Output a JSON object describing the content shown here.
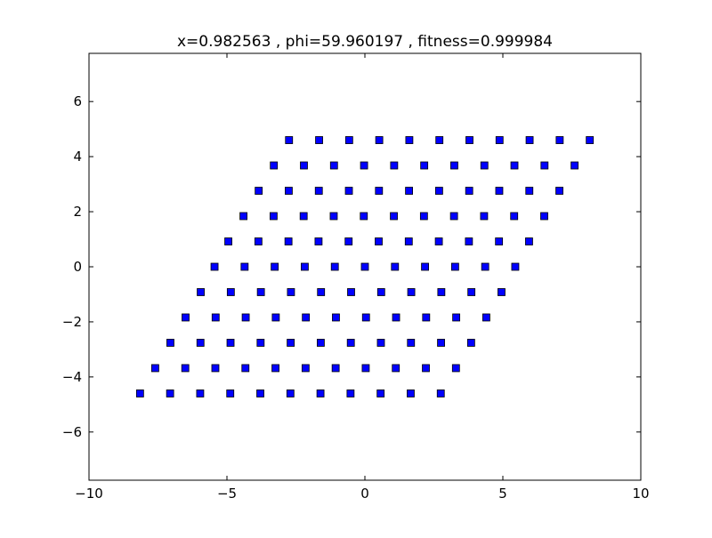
{
  "chart_data": {
    "type": "scatter",
    "title": "x=0.982563 , phi=59.960197 , fitness=0.999984",
    "xlabel": "",
    "ylabel": "",
    "xlim": [
      -10,
      10
    ],
    "ylim": [
      -7.75,
      7.75
    ],
    "xticks": [
      -10,
      -5,
      0,
      5,
      10
    ],
    "xtick_labels": [
      "−10",
      "−5",
      "0",
      "5",
      "10"
    ],
    "yticks": [
      -6,
      -4,
      -2,
      0,
      2,
      4,
      6
    ],
    "ytick_labels": [
      "−6",
      "−4",
      "−2",
      "0",
      "2",
      "4",
      "6"
    ],
    "grid": false,
    "marker": "square",
    "marker_color": "#0000ff",
    "marker_edge_color": "#000000",
    "rows": [
      {
        "y": 4.6,
        "x": [
          -2.75,
          -1.66,
          -0.57,
          0.52,
          1.61,
          2.7,
          3.79,
          4.88,
          5.97,
          7.06,
          8.15
        ]
      },
      {
        "y": 3.68,
        "x": [
          -3.3,
          -2.21,
          -1.12,
          -0.03,
          1.06,
          2.15,
          3.24,
          4.33,
          5.42,
          6.51,
          7.6
        ]
      },
      {
        "y": 2.76,
        "x": [
          -3.85,
          -2.76,
          -1.67,
          -0.58,
          0.51,
          1.6,
          2.69,
          3.78,
          4.87,
          5.96,
          7.05
        ]
      },
      {
        "y": 1.84,
        "x": [
          -4.4,
          -3.31,
          -2.22,
          -1.13,
          -0.04,
          1.05,
          2.14,
          3.23,
          4.32,
          5.41,
          6.5
        ]
      },
      {
        "y": 0.92,
        "x": [
          -4.95,
          -3.86,
          -2.77,
          -1.68,
          -0.59,
          0.5,
          1.59,
          2.68,
          3.77,
          4.86,
          5.95
        ]
      },
      {
        "y": 0,
        "x": [
          -5.45,
          -4.36,
          -3.27,
          -2.18,
          -1.09,
          0.0,
          1.09,
          2.18,
          3.27,
          4.36,
          5.45
        ]
      },
      {
        "y": -0.92,
        "x": [
          -5.95,
          -4.86,
          -3.77,
          -2.68,
          -1.59,
          -0.5,
          0.59,
          1.68,
          2.77,
          3.86,
          4.95
        ]
      },
      {
        "y": -1.84,
        "x": [
          -6.5,
          -5.41,
          -4.32,
          -3.23,
          -2.14,
          -1.05,
          0.04,
          1.13,
          2.22,
          3.31,
          4.4
        ]
      },
      {
        "y": -2.76,
        "x": [
          -7.05,
          -5.96,
          -4.87,
          -3.78,
          -2.69,
          -1.6,
          -0.51,
          0.58,
          1.67,
          2.76,
          3.85
        ]
      },
      {
        "y": -3.68,
        "x": [
          -7.6,
          -6.51,
          -5.42,
          -4.33,
          -3.24,
          -2.15,
          -1.06,
          0.03,
          1.12,
          2.21,
          3.3
        ]
      },
      {
        "y": -4.6,
        "x": [
          -8.15,
          -7.06,
          -5.97,
          -4.88,
          -3.79,
          -2.7,
          -1.61,
          -0.52,
          0.57,
          1.66,
          2.75
        ]
      }
    ]
  }
}
